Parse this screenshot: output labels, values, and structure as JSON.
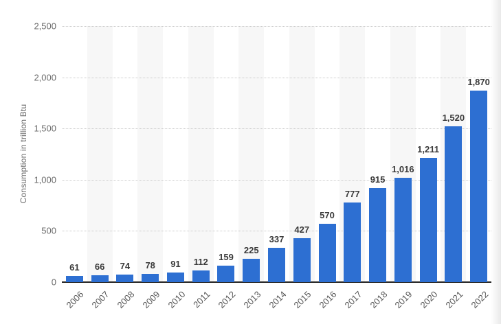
{
  "chart_data": {
    "type": "bar",
    "title": "",
    "xlabel": "",
    "ylabel": "Consumption in trillion Btu",
    "categories": [
      "2006",
      "2007",
      "2008",
      "2009",
      "2010",
      "2011",
      "2012",
      "2013",
      "2014",
      "2015",
      "2016",
      "2017",
      "2018",
      "2019",
      "2020",
      "2021",
      "2022"
    ],
    "values": [
      61,
      66,
      74,
      78,
      91,
      112,
      159,
      225,
      337,
      427,
      570,
      777,
      915,
      1016,
      1211,
      1520,
      1870
    ],
    "value_labels": [
      "61",
      "66",
      "74",
      "78",
      "91",
      "112",
      "159",
      "225",
      "337",
      "427",
      "570",
      "777",
      "915",
      "1,016",
      "1,211",
      "1,520",
      "1,870"
    ],
    "y_ticks": [
      {
        "value": 0,
        "label": "0"
      },
      {
        "value": 500,
        "label": "500"
      },
      {
        "value": 1000,
        "label": "1,000"
      },
      {
        "value": 1500,
        "label": "1,500"
      },
      {
        "value": 2000,
        "label": "2,000"
      },
      {
        "value": 2500,
        "label": "2,500"
      }
    ],
    "ylim": [
      0,
      2500
    ],
    "grid": "horizontal-dotted",
    "legend": "none",
    "column_striping": "alternating odd columns shaded",
    "style": {
      "bar_color": "#2d6fd2",
      "stripe_color": "#f7f7f7",
      "gridline_color": "#c9c9c9",
      "axis_line_color": "#222222",
      "y_tick_label_color": "#6b6b6b",
      "x_tick_label_color": "#555555",
      "value_label_color": "#3a3a3a",
      "background_color": "#ffffff"
    }
  }
}
